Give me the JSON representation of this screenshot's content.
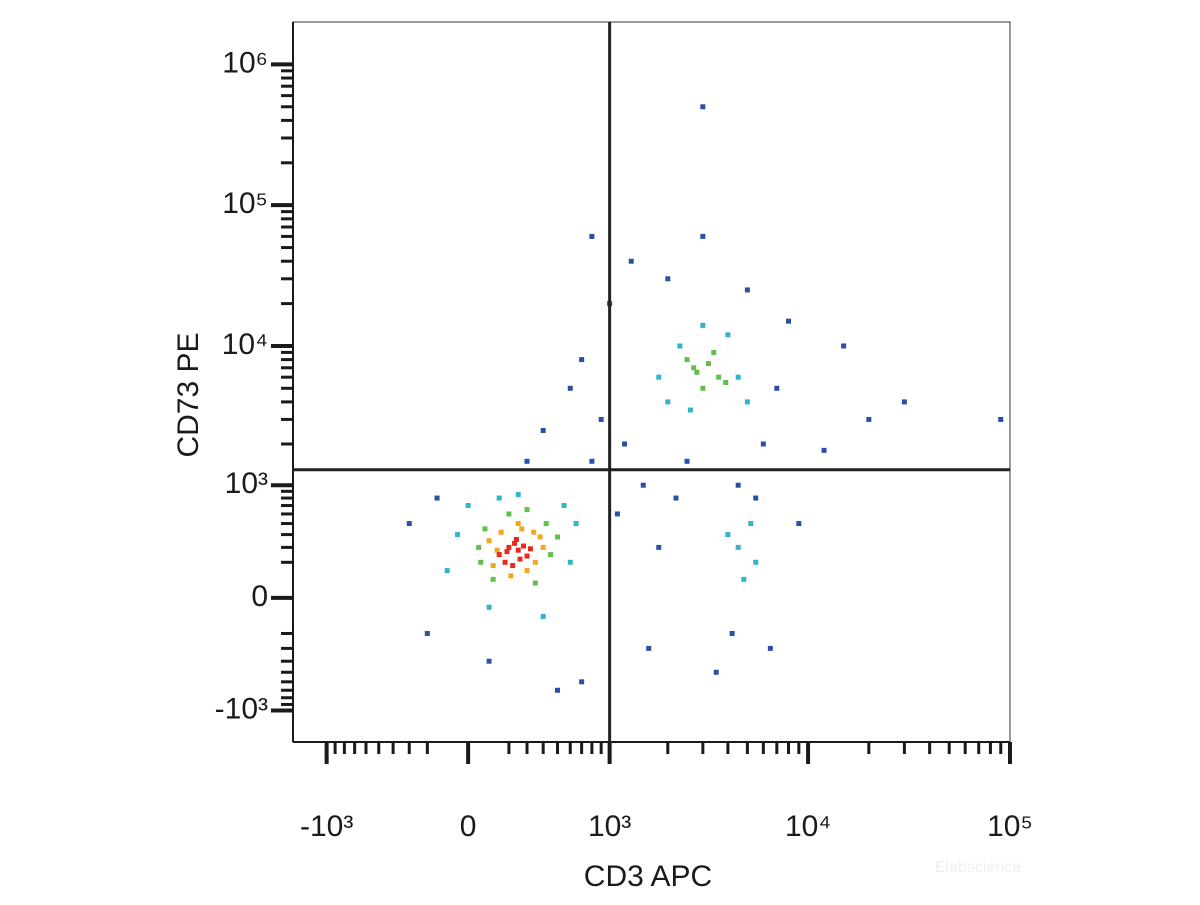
{
  "chart_data": {
    "type": "scatter",
    "x_label": "CD3 APC",
    "y_label": "CD73 PE",
    "watermark": "Elabscience",
    "scale": "biexponential",
    "xlim": [
      -1500,
      100000
    ],
    "ylim": [
      -1700,
      2000000
    ],
    "xticks": [
      {
        "value": -1000,
        "label": "-10³"
      },
      0,
      {
        "value": 1000,
        "label": "10³"
      },
      {
        "value": 10000,
        "label": "10⁴"
      },
      {
        "value": 100000,
        "label": "10⁵"
      }
    ],
    "yticks": [
      {
        "value": -1000,
        "label": "-10³"
      },
      0,
      {
        "value": 1000,
        "label": "10³"
      },
      {
        "value": 10000,
        "label": "10⁴"
      },
      {
        "value": 100000,
        "label": "10⁵"
      },
      {
        "value": 1000000,
        "label": "10⁶"
      }
    ],
    "xminorticks": [
      -900,
      -800,
      -700,
      -600,
      -500,
      -400,
      -300,
      -200,
      200,
      300,
      400,
      500,
      600,
      700,
      800,
      900,
      2000,
      3000,
      4000,
      5000,
      6000,
      7000,
      8000,
      9000,
      20000,
      30000,
      40000,
      50000,
      60000,
      70000,
      80000,
      90000
    ],
    "yminorticks": [
      -900,
      -800,
      -700,
      -600,
      -500,
      -400,
      -300,
      -200,
      200,
      300,
      400,
      500,
      600,
      700,
      800,
      900,
      2000,
      3000,
      4000,
      5000,
      6000,
      7000,
      8000,
      9000,
      20000,
      30000,
      40000,
      50000,
      60000,
      70000,
      80000,
      90000,
      200000,
      300000,
      400000,
      500000,
      600000,
      700000,
      800000,
      900000
    ],
    "gates": {
      "x": 1000,
      "y": 1300
    },
    "series": [
      {
        "color": "#2b4ea6",
        "x": [
          -300,
          -200,
          800,
          900,
          700,
          1200,
          1500,
          1000,
          1300,
          2000,
          6000,
          7000,
          8000,
          6500,
          3500,
          4200,
          1600,
          2200,
          5000,
          15000,
          20000,
          300,
          400,
          600,
          100,
          -150,
          9000,
          12000,
          3000,
          800,
          2500,
          4500,
          5500,
          1100,
          1800,
          700,
          30000,
          90000,
          500,
          3000
        ],
        "values": [
          500,
          -200,
          1500,
          3000,
          8000,
          2000,
          1000,
          20000,
          40000,
          30000,
          2000,
          5000,
          15000,
          -300,
          -500,
          -200,
          -300,
          800,
          25000,
          10000,
          3000,
          1500,
          2500,
          5000,
          -400,
          800,
          500,
          1800,
          60000,
          60000,
          1500,
          1000,
          800,
          600,
          300,
          -600,
          4000,
          3000,
          -700,
          500000
        ]
      },
      {
        "color": "#2fb5c8",
        "x": [
          -50,
          600,
          0,
          650,
          100,
          550,
          250,
          400,
          -100,
          150,
          2000,
          4500,
          2300,
          4000,
          1800,
          3000,
          5000,
          2600,
          4500,
          5200,
          4800,
          4000,
          5500
        ],
        "values": [
          400,
          200,
          700,
          500,
          -50,
          700,
          850,
          -100,
          150,
          800,
          4000,
          6000,
          10000,
          12000,
          6000,
          14000,
          4000,
          3500,
          300,
          500,
          100,
          400,
          200
        ]
      },
      {
        "color": "#62c04a",
        "x": [
          50,
          450,
          80,
          500,
          120,
          420,
          200,
          350,
          60,
          300,
          2800,
          3200,
          3600,
          2500,
          3000,
          3400,
          2700,
          3900
        ],
        "values": [
          300,
          250,
          450,
          380,
          100,
          500,
          600,
          80,
          200,
          650,
          6500,
          7500,
          6000,
          8000,
          5000,
          9000,
          7000,
          5500
        ]
      },
      {
        "color": "#f4a51c",
        "x": [
          100,
          350,
          120,
          380,
          160,
          300,
          400,
          210,
          270,
          140,
          340,
          250
        ],
        "values": [
          350,
          200,
          180,
          380,
          420,
          150,
          300,
          120,
          450,
          280,
          420,
          500
        ]
      },
      {
        "color": "#e42a1d",
        "x": [
          150,
          200,
          250,
          300,
          180,
          230,
          280,
          220,
          260,
          190,
          320,
          240
        ],
        "values": [
          250,
          300,
          280,
          240,
          200,
          330,
          310,
          180,
          220,
          270,
          290,
          360
        ]
      }
    ]
  }
}
